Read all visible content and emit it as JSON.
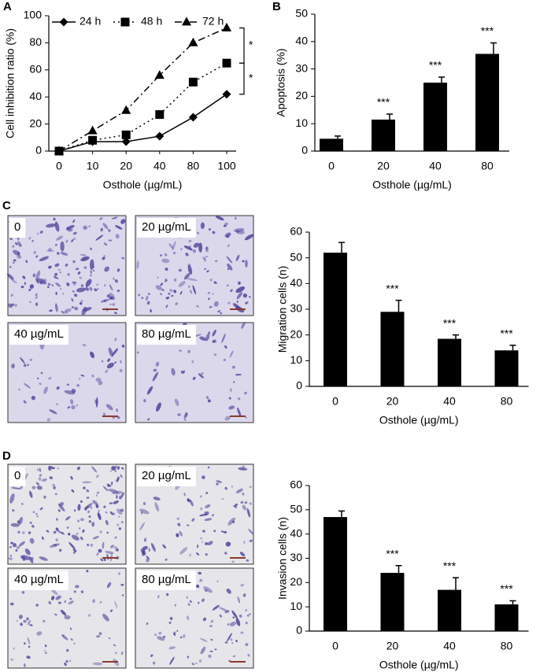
{
  "panel_labels": [
    "A",
    "B",
    "C",
    "D"
  ],
  "micrograph_labels": {
    "C": [
      "0",
      "20 µg/mL",
      "40 µg/mL",
      "80 µg/mL"
    ],
    "D": [
      "0",
      "20 µg/mL",
      "40 µg/mL",
      "80 µg/mL"
    ]
  },
  "chart_data": [
    {
      "type": "line",
      "x_label": "Osthole (µg/mL)",
      "y_label": "Cell inhibition ratio (%)",
      "categories": [
        "0",
        "10",
        "20",
        "40",
        "80",
        "100"
      ],
      "series": [
        {
          "name": "24 h",
          "color": "#000000",
          "marker": "diamond",
          "line_style": "solid",
          "values": [
            0,
            7,
            7,
            11,
            25,
            42
          ]
        },
        {
          "name": "48 h",
          "color": "#000000",
          "marker": "square",
          "line_style": "dotted",
          "values": [
            0,
            8,
            12,
            27,
            51,
            65
          ]
        },
        {
          "name": "72 h",
          "color": "#000000",
          "marker": "triangle",
          "line_style": "dashdot",
          "values": [
            0,
            15,
            30,
            56,
            80,
            91
          ]
        }
      ],
      "ylim": [
        0,
        100
      ],
      "yticks": [
        0,
        20,
        40,
        60,
        80,
        100
      ],
      "annotations": [
        "*",
        "*"
      ]
    },
    {
      "type": "bar",
      "x_label": "Osthole (µg/mL)",
      "y_label": "Apoptosis (%)",
      "color": "#000000",
      "categories": [
        "0",
        "20",
        "40",
        "80"
      ],
      "values": [
        4.5,
        11.5,
        25,
        35.5
      ],
      "errors": [
        1,
        2,
        2,
        4
      ],
      "annotations": [
        null,
        "***",
        "***",
        "***"
      ],
      "ylim": [
        0,
        50
      ],
      "yticks": [
        0,
        10,
        20,
        30,
        40,
        50
      ]
    },
    {
      "type": "bar",
      "x_label": "Osthole (µg/mL)",
      "y_label": "Migration cells (n)",
      "color": "#000000",
      "categories": [
        "0",
        "20",
        "40",
        "80"
      ],
      "values": [
        52,
        29,
        18.5,
        14
      ],
      "errors": [
        4,
        4.5,
        1.5,
        2
      ],
      "annotations": [
        null,
        "***",
        "***",
        "***"
      ],
      "ylim": [
        0,
        60
      ],
      "yticks": [
        0,
        10,
        20,
        30,
        40,
        50,
        60
      ]
    },
    {
      "type": "bar",
      "x_label": "Osthole (µg/mL)",
      "y_label": "Invasion cells (n)",
      "color": "#000000",
      "categories": [
        "0",
        "20",
        "40",
        "80"
      ],
      "values": [
        47,
        24,
        17,
        11
      ],
      "errors": [
        2.5,
        3,
        5,
        1.5
      ],
      "annotations": [
        null,
        "***",
        "***",
        "***"
      ],
      "ylim": [
        0,
        60
      ],
      "yticks": [
        0,
        10,
        20,
        30,
        40,
        50,
        60
      ]
    }
  ]
}
